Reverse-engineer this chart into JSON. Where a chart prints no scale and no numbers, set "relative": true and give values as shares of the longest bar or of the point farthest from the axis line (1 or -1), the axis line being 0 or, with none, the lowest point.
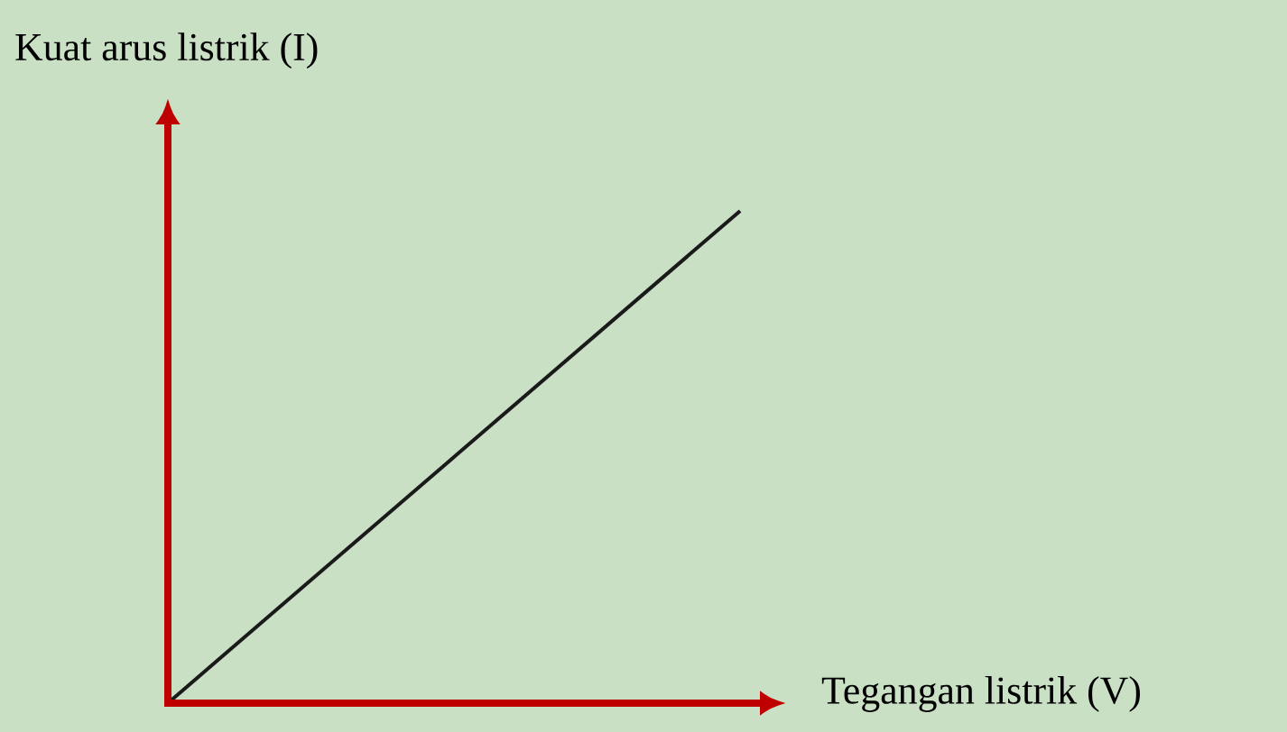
{
  "chart_data": {
    "type": "line",
    "xlabel": "Tegangan listrik (V)",
    "ylabel": "Kuat arus listrik (I)",
    "relative": true,
    "categories": [
      null,
      null
    ],
    "series": [
      {
        "color": "#1a1a1a",
        "values": [
          0,
          1
        ]
      }
    ]
  }
}
